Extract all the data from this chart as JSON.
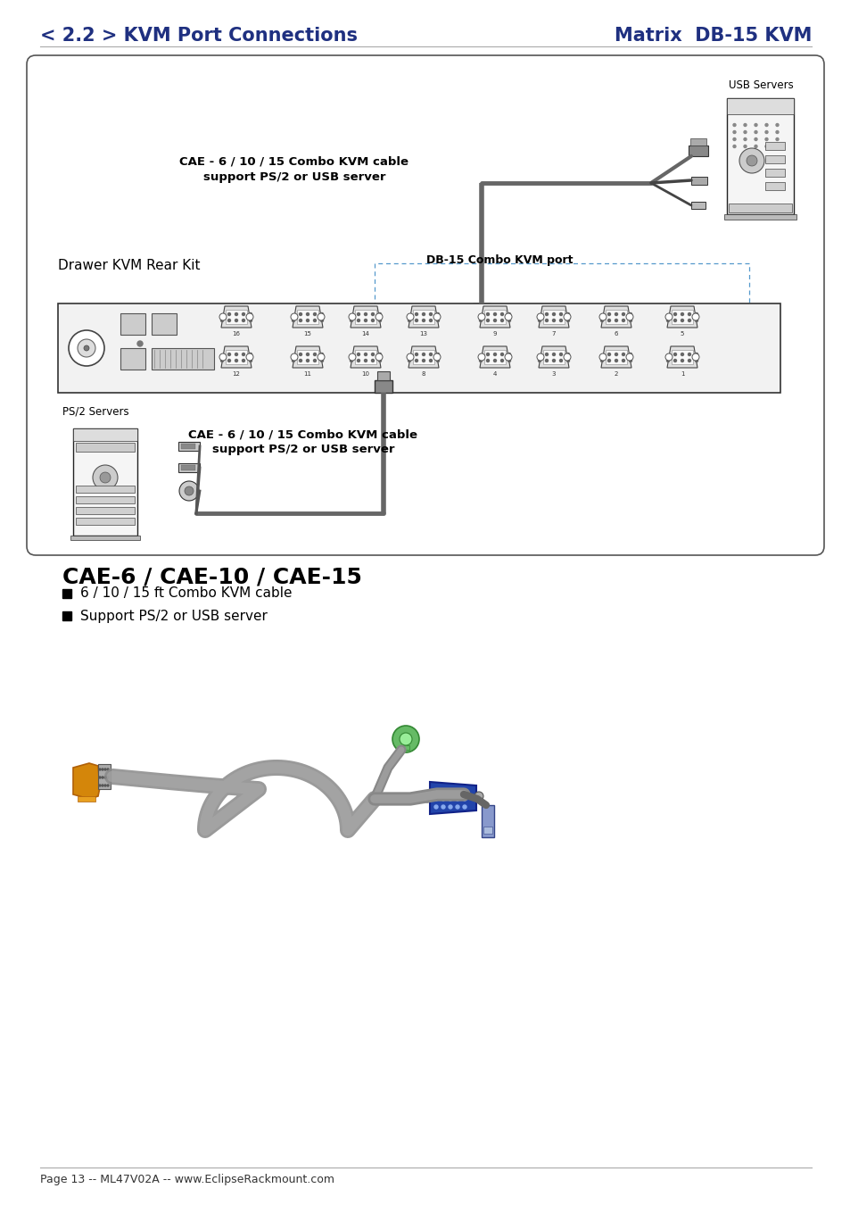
{
  "title_left": "< 2.2 > KVM Port Connections",
  "title_right": "Matrix  DB-15 KVM",
  "title_color": "#1f3080",
  "title_fontsize": 15,
  "page_footer": "Page 13 -- ML47V02A -- www.EclipseRackmount.com",
  "bg_color": "#ffffff",
  "section_title": "CAE-6 / CAE-10 / CAE-15",
  "bullet1": "6 / 10 / 15 ft Combo KVM cable",
  "bullet2": "Support PS/2 or USB server",
  "usb_label": "USB Servers",
  "cable_label_top1": "CAE - 6 / 10 / 15 Combo KVM cable",
  "cable_label_top2": "support PS/2 or USB server",
  "cable_label_bot1": "CAE - 6 / 10 / 15 Combo KVM cable",
  "cable_label_bot2": "support PS/2 or USB server",
  "drawer_label": "Drawer KVM Rear Kit",
  "db15_label": "DB-15 Combo KVM port",
  "ps2_label": "PS/2 Servers",
  "top_nums": [
    "16",
    "15",
    "14",
    "13",
    "9",
    "7",
    "6",
    "5"
  ],
  "bot_nums": [
    "12",
    "11",
    "10",
    "8",
    "4",
    "3",
    "2",
    "1"
  ]
}
